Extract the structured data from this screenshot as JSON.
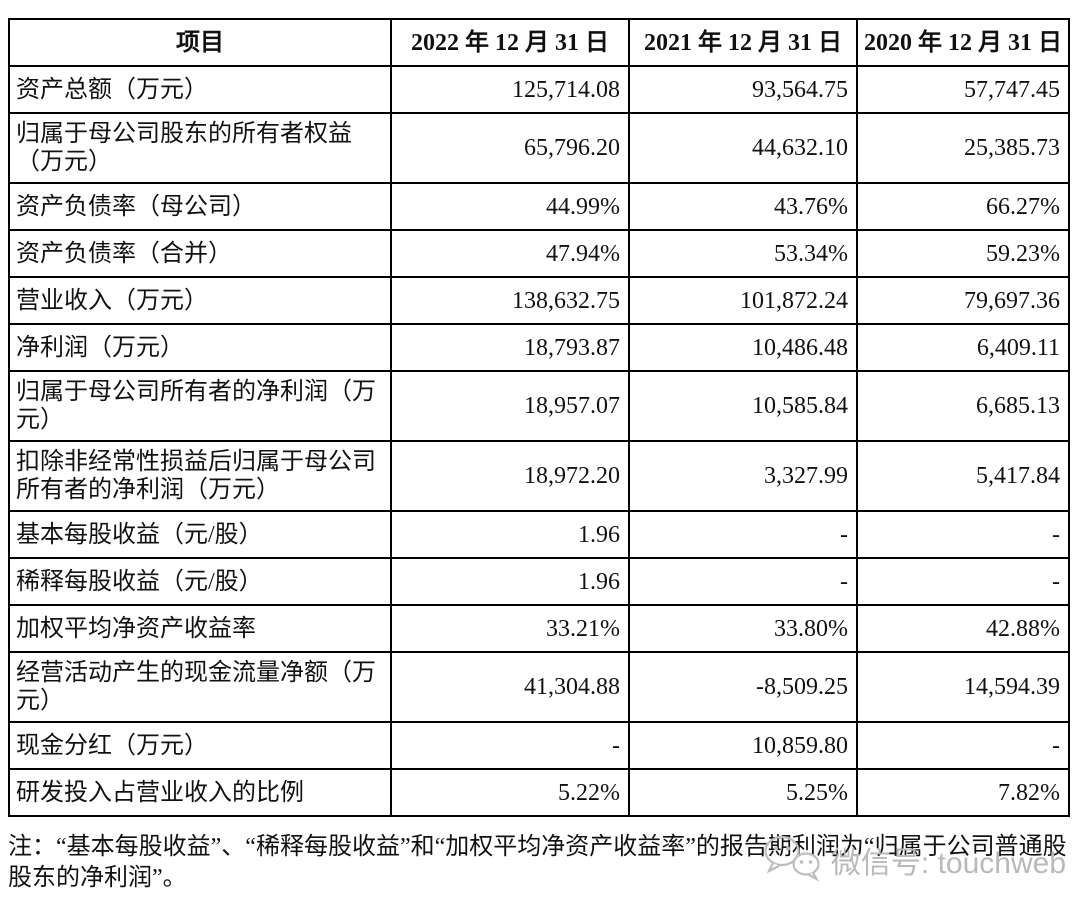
{
  "table": {
    "headers": [
      "项目",
      "2022 年 12 月 31 日",
      "2021 年 12 月 31 日",
      "2020 年 12 月 31 日"
    ],
    "rows": [
      {
        "label": "资产总额（万元）",
        "values": [
          "125,714.08",
          "93,564.75",
          "57,747.45"
        ]
      },
      {
        "label": "归属于母公司股东的所有者权益（万元）",
        "values": [
          "65,796.20",
          "44,632.10",
          "25,385.73"
        ]
      },
      {
        "label": "资产负债率（母公司）",
        "values": [
          "44.99%",
          "43.76%",
          "66.27%"
        ]
      },
      {
        "label": "资产负债率（合并）",
        "values": [
          "47.94%",
          "53.34%",
          "59.23%"
        ]
      },
      {
        "label": "营业收入（万元）",
        "values": [
          "138,632.75",
          "101,872.24",
          "79,697.36"
        ]
      },
      {
        "label": "净利润（万元）",
        "values": [
          "18,793.87",
          "10,486.48",
          "6,409.11"
        ]
      },
      {
        "label": "归属于母公司所有者的净利润（万元）",
        "values": [
          "18,957.07",
          "10,585.84",
          "6,685.13"
        ]
      },
      {
        "label": "扣除非经常性损益后归属于母公司所有者的净利润（万元）",
        "values": [
          "18,972.20",
          "3,327.99",
          "5,417.84"
        ]
      },
      {
        "label": "基本每股收益（元/股）",
        "values": [
          "1.96",
          "-",
          "-"
        ]
      },
      {
        "label": "稀释每股收益（元/股）",
        "values": [
          "1.96",
          "-",
          "-"
        ]
      },
      {
        "label": "加权平均净资产收益率",
        "values": [
          "33.21%",
          "33.80%",
          "42.88%"
        ]
      },
      {
        "label": "经营活动产生的现金流量净额（万元）",
        "values": [
          "41,304.88",
          "-8,509.25",
          "14,594.39"
        ]
      },
      {
        "label": "现金分红（万元）",
        "values": [
          "-",
          "10,859.80",
          "-"
        ]
      },
      {
        "label": "研发投入占营业收入的比例",
        "values": [
          "5.22%",
          "5.25%",
          "7.82%"
        ]
      }
    ]
  },
  "note": "注：“基本每股收益”、“稀释每股收益”和“加权平均净资产收益率”的报告期利润为“归属于公司普通股股东的净利润”。",
  "watermark": {
    "icon": "wechat-icon",
    "text": "微信号: touchweb",
    "color": "#b9b9b9"
  }
}
